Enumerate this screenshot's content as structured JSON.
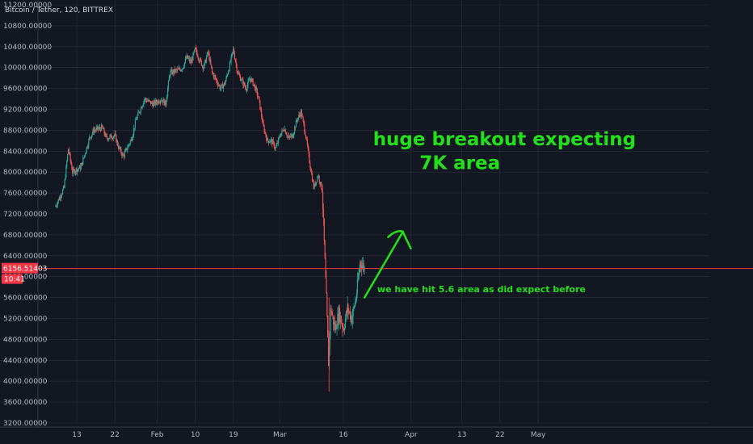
{
  "chart_data": {
    "type": "candlestick",
    "title": "Bitcoin / Tether, 120, BITTREX",
    "y_ticks": [
      "11200.00000",
      "10800.00000",
      "10400.00000",
      "10000.00000",
      "9600.00000",
      "9200.00000",
      "8800.00000",
      "8400.00000",
      "8000.00000",
      "7600.00000",
      "7200.00000",
      "6800.00000",
      "6400.00000",
      "6000.00000",
      "5600.00000",
      "5200.00000",
      "4800.00000",
      "4400.00000",
      "4000.00000",
      "3600.00000",
      "3200.00000"
    ],
    "ylim": [
      3200,
      11200
    ],
    "x_ticks": [
      {
        "label": "13",
        "day": 12
      },
      {
        "label": "22",
        "day": 21
      },
      {
        "label": "Feb",
        "day": 31
      },
      {
        "label": "10",
        "day": 40
      },
      {
        "label": "19",
        "day": 49
      },
      {
        "label": "Mar",
        "day": 60
      },
      {
        "label": "16",
        "day": 75
      },
      {
        "label": "Apr",
        "day": 91
      },
      {
        "label": "13",
        "day": 103
      },
      {
        "label": "22",
        "day": 112
      },
      {
        "label": "May",
        "day": 121
      }
    ],
    "xlim": [
      7,
      133
    ],
    "last_price": {
      "value": 6156.51403,
      "label": "6156.51403",
      "countdown": "10:41"
    },
    "price_series": [
      {
        "day": 7,
        "v": 7350
      },
      {
        "day": 9,
        "v": 7700
      },
      {
        "day": 10,
        "v": 8450
      },
      {
        "day": 11,
        "v": 8000
      },
      {
        "day": 13,
        "v": 8100
      },
      {
        "day": 15,
        "v": 8650
      },
      {
        "day": 16,
        "v": 8800
      },
      {
        "day": 18,
        "v": 8850
      },
      {
        "day": 19,
        "v": 8650
      },
      {
        "day": 21,
        "v": 8700
      },
      {
        "day": 22,
        "v": 8450
      },
      {
        "day": 23,
        "v": 8300
      },
      {
        "day": 25,
        "v": 8650
      },
      {
        "day": 26,
        "v": 9000
      },
      {
        "day": 28,
        "v": 9400
      },
      {
        "day": 30,
        "v": 9300
      },
      {
        "day": 32,
        "v": 9400
      },
      {
        "day": 33,
        "v": 9300
      },
      {
        "day": 34,
        "v": 9900
      },
      {
        "day": 36,
        "v": 9950
      },
      {
        "day": 37,
        "v": 10000
      },
      {
        "day": 38,
        "v": 10200
      },
      {
        "day": 39,
        "v": 10100
      },
      {
        "day": 40,
        "v": 10350
      },
      {
        "day": 41,
        "v": 10150
      },
      {
        "day": 42,
        "v": 10000
      },
      {
        "day": 43,
        "v": 10300
      },
      {
        "day": 44,
        "v": 9900
      },
      {
        "day": 46,
        "v": 9600
      },
      {
        "day": 47,
        "v": 9700
      },
      {
        "day": 48,
        "v": 10000
      },
      {
        "day": 49,
        "v": 10350
      },
      {
        "day": 50,
        "v": 9900
      },
      {
        "day": 51,
        "v": 9750
      },
      {
        "day": 52,
        "v": 9600
      },
      {
        "day": 53,
        "v": 9800
      },
      {
        "day": 54,
        "v": 9650
      },
      {
        "day": 55,
        "v": 9400
      },
      {
        "day": 56,
        "v": 8900
      },
      {
        "day": 57,
        "v": 8600
      },
      {
        "day": 58,
        "v": 8600
      },
      {
        "day": 59,
        "v": 8450
      },
      {
        "day": 60,
        "v": 8700
      },
      {
        "day": 61,
        "v": 8850
      },
      {
        "day": 62,
        "v": 8650
      },
      {
        "day": 63,
        "v": 8700
      },
      {
        "day": 64,
        "v": 9000
      },
      {
        "day": 65,
        "v": 9150
      },
      {
        "day": 66,
        "v": 8750
      },
      {
        "day": 67,
        "v": 8200
      },
      {
        "day": 68,
        "v": 7700
      },
      {
        "day": 69,
        "v": 7950
      },
      {
        "day": 70,
        "v": 7650
      },
      {
        "day": 71,
        "v": 5500
      },
      {
        "day": 71.5,
        "v": 4300
      },
      {
        "day": 72,
        "v": 5400
      },
      {
        "day": 73,
        "v": 5000
      },
      {
        "day": 74,
        "v": 5300
      },
      {
        "day": 75,
        "v": 5000
      },
      {
        "day": 76,
        "v": 5400
      },
      {
        "day": 77,
        "v": 5200
      },
      {
        "day": 78,
        "v": 5600
      },
      {
        "day": 79,
        "v": 6300
      },
      {
        "day": 80,
        "v": 6156
      }
    ],
    "annotations": [
      {
        "text": "huge breakout expecting",
        "price": 8510,
        "day": 82
      },
      {
        "text": "7K area",
        "price": 8060,
        "day": 93
      },
      {
        "text": "we have hit 5.6 area as did expect before",
        "price": 5700,
        "day": 83
      }
    ],
    "arrow": {
      "from": {
        "day": 80,
        "price": 5600
      },
      "to": {
        "day": 89,
        "price": 6850
      }
    },
    "colors": {
      "background": "#131722",
      "grid": "#2a2e39",
      "up": "#26a69a",
      "down": "#ef5350",
      "annotation": "#22e01a",
      "last_price": "#f23645"
    }
  }
}
